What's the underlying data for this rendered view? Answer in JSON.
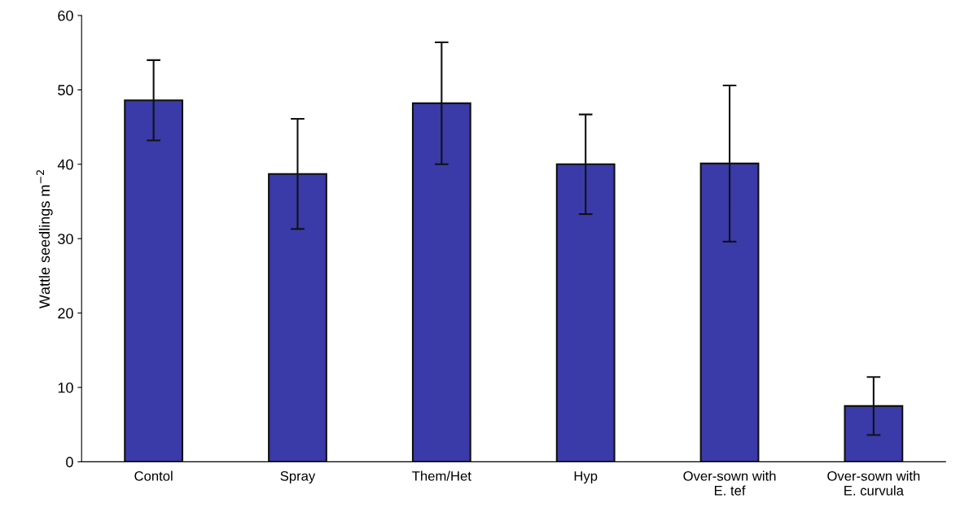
{
  "chart_data": {
    "type": "bar",
    "ylabel": "Wattle seedlings m$^{−2}$",
    "categories": [
      "Contol",
      "Spray",
      "Them/Het",
      "Hyp",
      "Over-sown with\nE. tef",
      "Over-sown with\nE. curvula"
    ],
    "values": [
      48.6,
      38.7,
      48.2,
      40.0,
      40.1,
      7.5
    ],
    "errors": [
      5.4,
      7.4,
      8.2,
      6.7,
      10.5,
      3.9
    ],
    "color": "#3a3aa8",
    "ylim": [
      0,
      60
    ],
    "yticks": [
      0,
      10,
      20,
      30,
      40,
      50,
      60
    ],
    "grid": false,
    "legend": false
  }
}
